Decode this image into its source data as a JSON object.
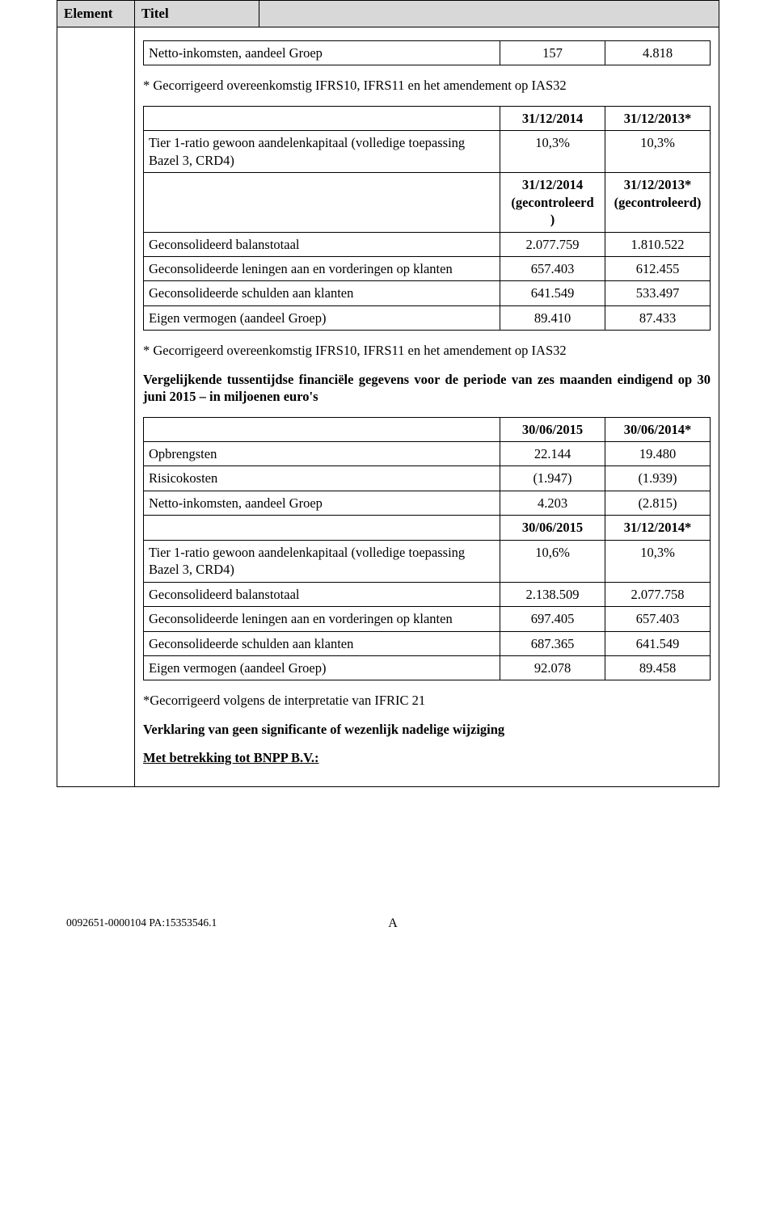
{
  "header": {
    "element": "Element",
    "titel": "Titel"
  },
  "t1": {
    "r1": {
      "lbl": "Netto-inkomsten, aandeel Groep",
      "c1": "157",
      "c2": "4.818"
    }
  },
  "note1": "* Gecorrigeerd overeenkomstig IFRS10, IFRS11 en het amendement op IAS32",
  "t2": {
    "h": {
      "c1": "31/12/2014",
      "c2": "31/12/2013*"
    },
    "r1": {
      "lbl": "Tier 1-ratio gewoon aandelenkapitaal (volledige toepassing Bazel 3, CRD4)",
      "c1": "10,3%",
      "c2": "10,3%"
    },
    "h2": {
      "c1_l1": "31/12/2014",
      "c1_l2": "(gecontroleerd",
      "c1_l3": ")",
      "c2_l1": "31/12/2013*",
      "c2_l2": "(gecontroleerd)"
    },
    "r2": {
      "lbl": "Geconsolideerd balanstotaal",
      "c1": "2.077.759",
      "c2": "1.810.522"
    },
    "r3": {
      "lbl": "Geconsolideerde leningen aan en vorderingen op klanten",
      "c1": "657.403",
      "c2": "612.455"
    },
    "r4": {
      "lbl": "Geconsolideerde schulden aan klanten",
      "c1": "641.549",
      "c2": "533.497"
    },
    "r5": {
      "lbl": "Eigen vermogen (aandeel Groep)",
      "c1": "89.410",
      "c2": "87.433"
    }
  },
  "note2": "* Gecorrigeerd overeenkomstig IFRS10, IFRS11 en het amendement op IAS32",
  "para1": "Vergelijkende tussentijdse financiële gegevens voor de periode van zes maanden eindigend op 30 juni 2015 – in miljoenen euro's",
  "t3": {
    "h": {
      "c1": "30/06/2015",
      "c2": "30/06/2014*"
    },
    "r1": {
      "lbl": "Opbrengsten",
      "c1": "22.144",
      "c2": "19.480"
    },
    "r2": {
      "lbl": "Risicokosten",
      "c1": "(1.947)",
      "c2": "(1.939)"
    },
    "r3": {
      "lbl": "Netto-inkomsten, aandeel Groep",
      "c1": "4.203",
      "c2": "(2.815)"
    },
    "h2": {
      "c1": "30/06/2015",
      "c2": "31/12/2014*"
    },
    "r4": {
      "lbl": "Tier 1-ratio gewoon aandelenkapitaal (volledige toepassing Bazel 3, CRD4)",
      "c1": "10,6%",
      "c2": "10,3%"
    },
    "r5": {
      "lbl": "Geconsolideerd balanstotaal",
      "c1": "2.138.509",
      "c2": "2.077.758"
    },
    "r6": {
      "lbl": "Geconsolideerde leningen aan en vorderingen op klanten",
      "c1": "697.405",
      "c2": "657.403"
    },
    "r7": {
      "lbl": "Geconsolideerde schulden aan klanten",
      "c1": "687.365",
      "c2": "641.549"
    },
    "r8": {
      "lbl": "Eigen vermogen (aandeel Groep)",
      "c1": "92.078",
      "c2": "89.458"
    }
  },
  "note3": "*Gecorrigeerd volgens de interpretatie van IFRIC 21",
  "para2": "Verklaring van geen significante of wezenlijk nadelige wijziging",
  "para3": "Met betrekking tot BNPP B.V.:",
  "footer": {
    "ref": "0092651-0000104 PA:15353546.1",
    "letter": "A"
  }
}
